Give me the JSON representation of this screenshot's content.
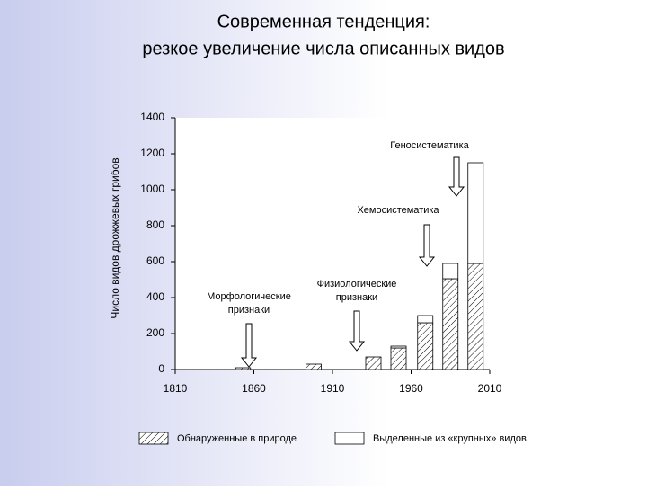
{
  "chart_data": {
    "type": "bar",
    "title": [
      "Современная тенденция:",
      "резкое увеличение числа описанных видов"
    ],
    "y_label": "Число видов дрожжевых грибов",
    "x": [
      1853,
      1898,
      1936,
      1952,
      1969,
      1985,
      2001
    ],
    "xlim": [
      1810,
      2010
    ],
    "xticks": [
      1810,
      1860,
      1910,
      1960,
      2010
    ],
    "ylim": [
      0,
      1400
    ],
    "yticks": [
      0,
      200,
      400,
      600,
      800,
      1000,
      1200,
      1400
    ],
    "stacked": true,
    "series": [
      {
        "name": "Обнаруженные в природе",
        "color": "hatch",
        "values": [
          10,
          30,
          70,
          120,
          260,
          505,
          590
        ]
      },
      {
        "name": "Выделенные из «крупных» видов",
        "color": "#ffffff",
        "values": [
          null,
          null,
          null,
          10,
          40,
          85,
          560
        ]
      }
    ],
    "annotations": [
      {
        "lines": [
          "Морфологические",
          "признаки"
        ]
      },
      {
        "lines": [
          "Физиологические",
          "признаки"
        ]
      },
      {
        "lines": [
          "Хемосистематика"
        ]
      },
      {
        "lines": [
          "Геносистематика"
        ]
      }
    ]
  }
}
